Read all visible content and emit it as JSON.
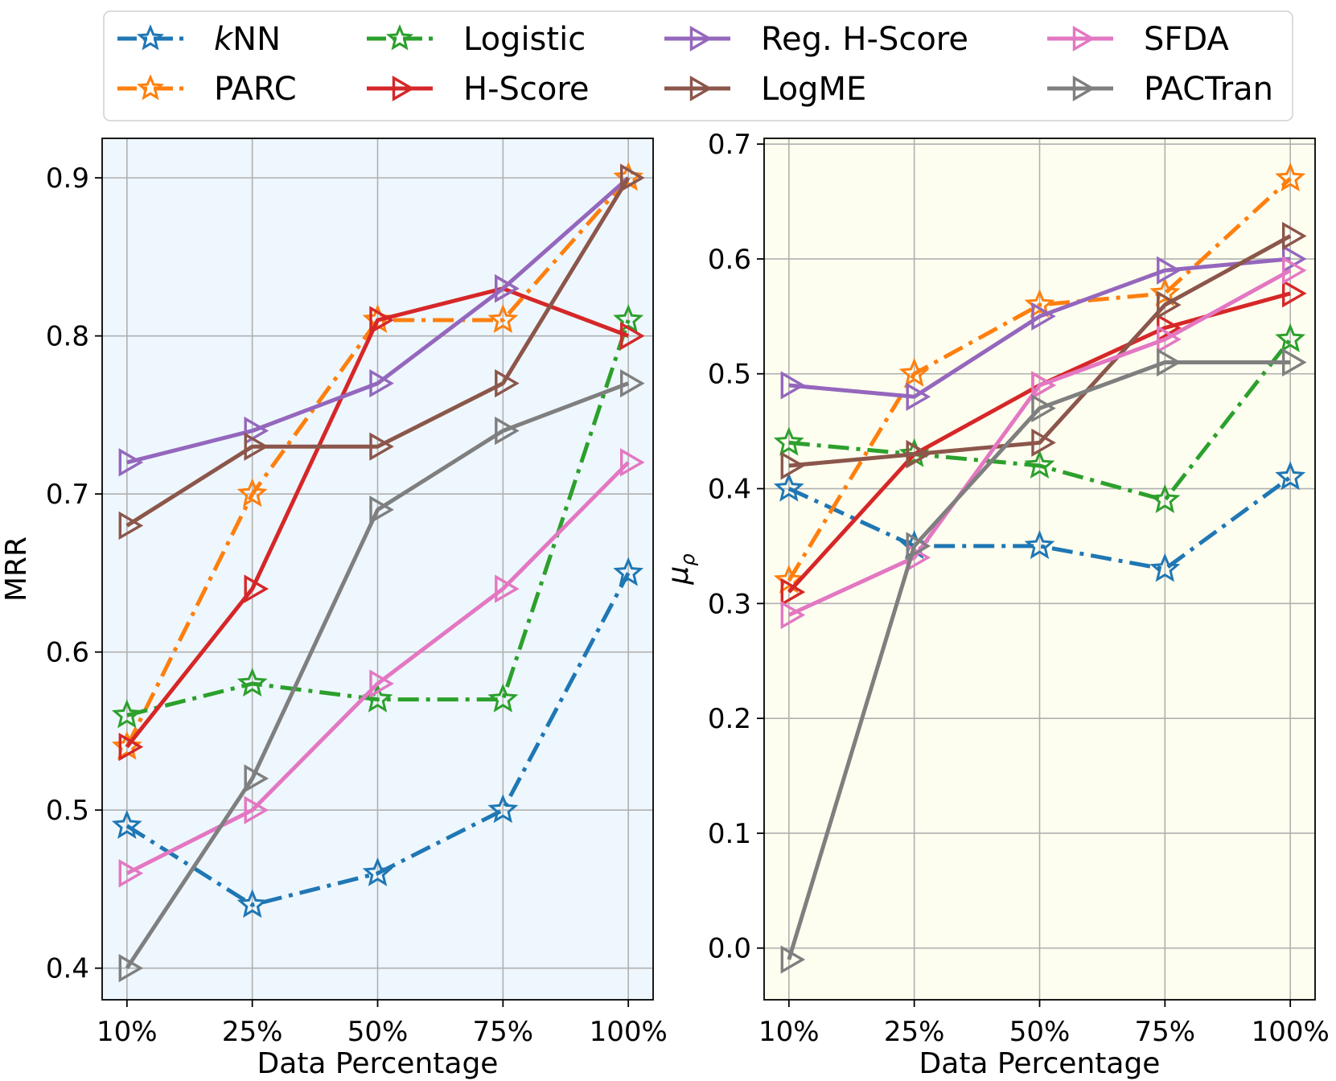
{
  "legend": {
    "placement": "top-center",
    "columns": 4
  },
  "chart_data": [
    {
      "type": "line",
      "title": "",
      "xlabel": "Data Percentage",
      "ylabel": "MRR",
      "categories": [
        "10%",
        "25%",
        "50%",
        "75%",
        "100%"
      ],
      "ylim": [
        0.38,
        0.925
      ],
      "yticks": [
        0.4,
        0.5,
        0.6,
        0.7,
        0.8,
        0.9
      ],
      "ytick_labels": [
        "0.4",
        "0.5",
        "0.6",
        "0.7",
        "0.8",
        "0.9"
      ],
      "grid": true,
      "background": "#eef7fd",
      "series": [
        {
          "name": "kNN",
          "values": [
            0.49,
            0.44,
            0.46,
            0.5,
            0.65
          ]
        },
        {
          "name": "PARC",
          "values": [
            0.54,
            0.7,
            0.81,
            0.81,
            0.9
          ]
        },
        {
          "name": "Logistic",
          "values": [
            0.56,
            0.58,
            0.57,
            0.57,
            0.81
          ]
        },
        {
          "name": "H-Score",
          "values": [
            0.54,
            0.64,
            0.81,
            0.83,
            0.8
          ]
        },
        {
          "name": "Reg. H-Score",
          "values": [
            0.72,
            0.74,
            0.77,
            0.83,
            0.9
          ]
        },
        {
          "name": "LogME",
          "values": [
            0.68,
            0.73,
            0.73,
            0.77,
            0.9
          ]
        },
        {
          "name": "SFDA",
          "values": [
            0.46,
            0.5,
            0.58,
            0.64,
            0.72
          ]
        },
        {
          "name": "PACTran",
          "values": [
            0.4,
            0.52,
            0.69,
            0.74,
            0.77
          ]
        }
      ]
    },
    {
      "type": "line",
      "title": "",
      "xlabel": "Data Percentage",
      "ylabel": "μ",
      "ylabel_subscript": "ρ",
      "categories": [
        "10%",
        "25%",
        "50%",
        "75%",
        "100%"
      ],
      "ylim": [
        -0.045,
        0.705
      ],
      "yticks": [
        0.0,
        0.1,
        0.2,
        0.3,
        0.4,
        0.5,
        0.6,
        0.7
      ],
      "ytick_labels": [
        "0.0",
        "0.1",
        "0.2",
        "0.3",
        "0.4",
        "0.5",
        "0.6",
        "0.7"
      ],
      "grid": true,
      "background": "#fefef0",
      "series": [
        {
          "name": "kNN",
          "values": [
            0.4,
            0.35,
            0.35,
            0.33,
            0.41
          ]
        },
        {
          "name": "PARC",
          "values": [
            0.32,
            0.5,
            0.56,
            0.57,
            0.67
          ]
        },
        {
          "name": "Logistic",
          "values": [
            0.44,
            0.43,
            0.42,
            0.39,
            0.53
          ]
        },
        {
          "name": "H-Score",
          "values": [
            0.31,
            0.43,
            0.49,
            0.54,
            0.57
          ]
        },
        {
          "name": "Reg. H-Score",
          "values": [
            0.49,
            0.48,
            0.55,
            0.59,
            0.6
          ]
        },
        {
          "name": "LogME",
          "values": [
            0.42,
            0.43,
            0.44,
            0.56,
            0.62
          ]
        },
        {
          "name": "SFDA",
          "values": [
            0.29,
            0.34,
            0.49,
            0.53,
            0.59
          ]
        },
        {
          "name": "PACTran",
          "values": [
            -0.01,
            0.35,
            0.47,
            0.51,
            0.51
          ]
        }
      ]
    }
  ],
  "series_styles": [
    {
      "name": "kNN",
      "name_italic_prefix": "k",
      "name_rest": "NN",
      "color": "#1f77b4",
      "marker": "star",
      "dash": "dashdot"
    },
    {
      "name": "PARC",
      "color": "#ff7f0e",
      "marker": "star",
      "dash": "dashdot"
    },
    {
      "name": "Logistic",
      "color": "#2ca02c",
      "marker": "star",
      "dash": "dashdot"
    },
    {
      "name": "H-Score",
      "color": "#d62728",
      "marker": "triangle-right",
      "dash": "solid"
    },
    {
      "name": "Reg. H-Score",
      "color": "#9467bd",
      "marker": "triangle-right",
      "dash": "solid"
    },
    {
      "name": "LogME",
      "color": "#8c564b",
      "marker": "triangle-right",
      "dash": "solid"
    },
    {
      "name": "SFDA",
      "color": "#e377c2",
      "marker": "triangle-right",
      "dash": "solid"
    },
    {
      "name": "PACTran",
      "color": "#7f7f7f",
      "marker": "triangle-right",
      "dash": "solid"
    }
  ]
}
